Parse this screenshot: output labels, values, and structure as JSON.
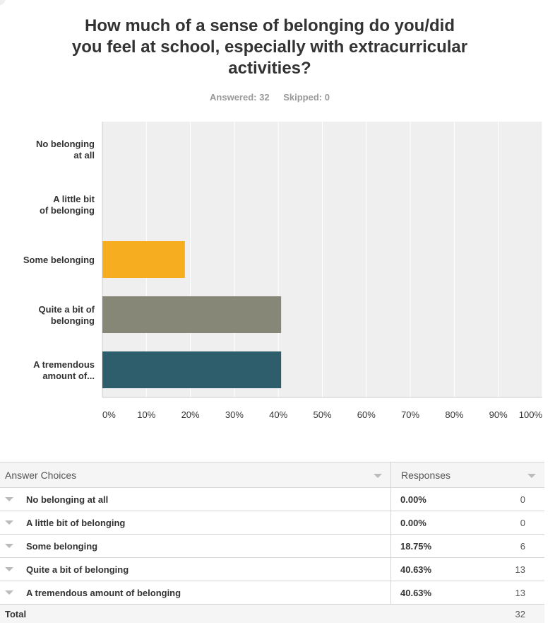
{
  "question": {
    "title": "How much of a sense of belonging do you/did you feel at school, especially with extracurricular activities?",
    "answered": "Answered: 32",
    "skipped": "Skipped: 0"
  },
  "chart_data": {
    "type": "bar",
    "orientation": "horizontal",
    "categories_display": [
      "No belonging|at all",
      "A little bit|of belonging",
      "Some belonging",
      "Quite a bit of|belonging",
      "A tremendous|amount of..."
    ],
    "categories": [
      "No belonging at all",
      "A little bit of belonging",
      "Some belonging",
      "Quite a bit of belonging",
      "A tremendous amount of belonging"
    ],
    "values": [
      0,
      0,
      18.75,
      40.63,
      40.63
    ],
    "colors": [
      "#1c7ec0",
      "#6cb2d8",
      "#f6ae20",
      "#878778",
      "#2e5e6c"
    ],
    "xlim": [
      0,
      100
    ],
    "xticks": [
      "0%",
      "10%",
      "20%",
      "30%",
      "40%",
      "50%",
      "60%",
      "70%",
      "80%",
      "90%",
      "100%"
    ],
    "grid": true,
    "legend": false
  },
  "table": {
    "header": {
      "choices": "Answer Choices",
      "responses": "Responses"
    },
    "rows": [
      {
        "choice": "No belonging at all",
        "percent": "0.00%",
        "count": "0"
      },
      {
        "choice": "A little bit of belonging",
        "percent": "0.00%",
        "count": "0"
      },
      {
        "choice": "Some belonging",
        "percent": "18.75%",
        "count": "6"
      },
      {
        "choice": "Quite a bit of belonging",
        "percent": "40.63%",
        "count": "13"
      },
      {
        "choice": "A tremendous amount of belonging",
        "percent": "40.63%",
        "count": "13"
      }
    ],
    "total_label": "Total",
    "total_count": "32"
  }
}
